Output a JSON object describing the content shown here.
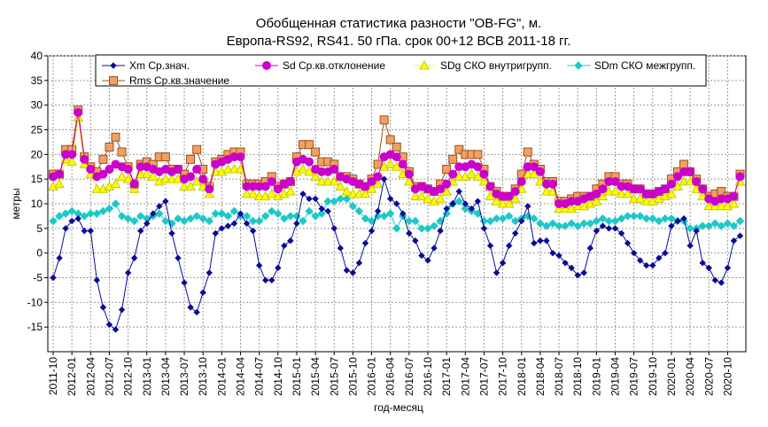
{
  "chart_data": {
    "type": "line",
    "title": "Обобщенная статистика разности \"OB-FG\", м.",
    "subtitle": "Европа-RS92, RS41. 50 гПа. срок 00+12 ВСВ 2011-18 гг.",
    "x_label": "год-месяц",
    "y_label": "метры",
    "ylim": [
      -20,
      40
    ],
    "yticks": [
      -15,
      -10,
      -5,
      0,
      5,
      10,
      15,
      20,
      25,
      30,
      35,
      40
    ],
    "grid": true,
    "legend": "top",
    "categories": [
      "2011-10",
      null,
      null,
      "2012-01",
      null,
      null,
      "2012-04",
      null,
      null,
      "2012-07",
      null,
      null,
      "2012-10",
      null,
      null,
      "2013-01",
      null,
      null,
      "2013-04",
      null,
      null,
      "2013-07",
      null,
      null,
      "2013-10",
      null,
      null,
      "2014-01",
      null,
      null,
      "2014-04",
      null,
      null,
      "2014-07",
      null,
      null,
      "2014-10",
      null,
      null,
      "2015-01",
      null,
      null,
      "2015-04",
      null,
      null,
      "2015-07",
      null,
      null,
      "2015-10",
      null,
      null,
      "2016-01",
      null,
      null,
      "2016-04",
      null,
      null,
      "2016-07",
      null,
      null,
      "2016-10",
      null,
      null,
      "2017-01",
      null,
      null,
      "2017-04",
      null,
      null,
      "2017-07",
      null,
      null,
      "2017-10",
      null,
      null,
      "2018-01",
      null,
      null,
      "2018-04",
      null,
      null,
      "2018-07",
      null,
      null,
      "2018-10",
      null,
      null,
      "2019-01",
      null,
      null,
      "2019-04",
      null,
      null,
      "2019-07",
      null,
      null,
      "2019-10",
      null,
      null,
      "2020-01",
      null,
      null,
      "2020-04",
      null,
      null,
      "2020-07",
      null,
      null,
      "2020-10",
      null,
      null
    ],
    "series": [
      {
        "name": "Xm Ср.знач.",
        "color": "#0a0a9a",
        "marker": "diamond",
        "values": [
          -5,
          -1,
          5,
          6.5,
          7,
          4.5,
          4.5,
          -5.5,
          -11,
          -14.5,
          -15.5,
          -11.5,
          -4,
          -1,
          4.5,
          6,
          8,
          9.5,
          10.5,
          4,
          -1,
          -6,
          -11,
          -12,
          -8,
          -4,
          4,
          5,
          5.5,
          6,
          8,
          6,
          4.5,
          -2.5,
          -5.5,
          -5.5,
          -3,
          1.5,
          2.5,
          6,
          12,
          11,
          11,
          9,
          8.5,
          5,
          1,
          -3.5,
          -4,
          -2,
          2,
          4.5,
          8.5,
          15,
          11,
          10,
          8,
          4,
          2.5,
          -0.5,
          -1.5,
          1,
          4.5,
          9,
          10,
          12.5,
          10,
          9,
          10.5,
          5,
          1.5,
          -4,
          -2,
          1.5,
          4,
          6.5,
          9.5,
          2,
          2.5,
          2.5,
          0,
          -0.5,
          -2,
          -3,
          -4.5,
          -4,
          1,
          4.5,
          5.5,
          5,
          5,
          4,
          2,
          0,
          -1.5,
          -2.5,
          -2.5,
          -1,
          0,
          5.5,
          6.5,
          7,
          1.5,
          4.5,
          -2,
          -3,
          -5.5,
          -6,
          -3,
          2.5,
          3.5
        ]
      },
      {
        "name": "Sd Ср.кв.отклонение",
        "color": "#cc00cc",
        "marker": "circle",
        "values": [
          15.5,
          16,
          20,
          20,
          28.5,
          19,
          17,
          15.5,
          16,
          17,
          18,
          17.5,
          17,
          14,
          17.5,
          17.5,
          17,
          16.5,
          17,
          16.5,
          17,
          15,
          15.5,
          17,
          15,
          13,
          18,
          18.5,
          19,
          19.5,
          19.5,
          13.5,
          13.5,
          13.5,
          13.5,
          14.5,
          13,
          14,
          14.5,
          18.5,
          19,
          18.5,
          17,
          16.5,
          16.5,
          17,
          15.5,
          15,
          14.5,
          14,
          13.5,
          14.5,
          15.5,
          19.5,
          20,
          19.5,
          18,
          16,
          13,
          13.5,
          13,
          12.5,
          13,
          14,
          16,
          17.5,
          17.5,
          18,
          17.5,
          16,
          13.5,
          12,
          11.5,
          11.5,
          12.5,
          14.5,
          17.5,
          17.5,
          16.5,
          14,
          14,
          10,
          10,
          10.5,
          10.5,
          11,
          11.5,
          12,
          13,
          14.5,
          14.5,
          13.5,
          13.5,
          13,
          13,
          12,
          12,
          12.5,
          13,
          14,
          15.5,
          16.5,
          16.5,
          14.5,
          13,
          11,
          10.5,
          11,
          11,
          11.5,
          15.5
        ]
      },
      {
        "name": "SDg СКО внутригрупп.",
        "color": "#ffff00",
        "marker": "triangle",
        "values": [
          13.5,
          14,
          19,
          18.5,
          27.5,
          18,
          16,
          13,
          13,
          13.5,
          14,
          15.5,
          15,
          13,
          16,
          16,
          15.5,
          14.5,
          15,
          15,
          15,
          13.5,
          13.5,
          14.5,
          13.5,
          12,
          16.5,
          16.5,
          17,
          17,
          17,
          12,
          12,
          11.5,
          11.5,
          12,
          11.5,
          12,
          12.5,
          16.5,
          17,
          16.5,
          15.5,
          14.5,
          14.5,
          14.5,
          13.5,
          12.5,
          12,
          12,
          12,
          13,
          14,
          17.5,
          18,
          17.5,
          16,
          14.5,
          11.5,
          11.5,
          11,
          10.5,
          11,
          12.5,
          14.5,
          15.5,
          15.5,
          16,
          15.5,
          14.5,
          11.5,
          10.5,
          10,
          10,
          11,
          13,
          16,
          16,
          14.5,
          12.5,
          12.5,
          9,
          9,
          9,
          9.5,
          9.5,
          10,
          10.5,
          11.5,
          12.5,
          12.5,
          12,
          12,
          11,
          11,
          10.5,
          10.5,
          11,
          11.5,
          12,
          13.5,
          14.5,
          14.5,
          13,
          11.5,
          9.5,
          9.5,
          9.5,
          9.5,
          10,
          14.5
        ]
      },
      {
        "name": "SDm СКО межгрупп.",
        "color": "#1cc8c8",
        "marker": "diamond",
        "values": [
          6.5,
          7.5,
          8,
          8.5,
          8,
          7.5,
          8,
          8,
          8.5,
          9,
          10,
          7.5,
          7,
          6.5,
          7.5,
          7,
          7.5,
          8,
          6.5,
          6,
          7,
          6.5,
          7,
          7.5,
          7,
          6.5,
          8,
          8,
          7.5,
          8.5,
          7.5,
          7.5,
          6.5,
          6.5,
          7.5,
          8.5,
          8,
          7,
          7.5,
          7.5,
          6.5,
          8.5,
          7.5,
          8,
          10.5,
          10.5,
          11,
          11,
          9.5,
          8.5,
          7,
          6.5,
          7.5,
          7.5,
          8,
          5,
          7.5,
          6.5,
          6.5,
          5,
          5,
          5.5,
          6.5,
          8,
          10,
          10.5,
          9,
          8.5,
          8,
          6.5,
          6.5,
          7,
          7,
          7.5,
          6.5,
          7,
          7.5,
          7,
          6,
          5.5,
          6,
          5.5,
          5.5,
          6,
          5.5,
          6,
          6,
          6.5,
          7,
          6.5,
          6.5,
          7,
          7.5,
          7.5,
          7.5,
          7,
          7,
          6.5,
          7,
          7,
          6.5,
          6.5,
          5,
          5,
          5.5,
          5.5,
          6,
          5.5,
          6,
          5.5,
          6.5
        ]
      },
      {
        "name": "Rms Ср.кв.значение",
        "color": "#f0a060",
        "marker": "square",
        "values": [
          16,
          16,
          21,
          21,
          29,
          19.5,
          17.5,
          16.5,
          19,
          21.5,
          23.5,
          20.5,
          17.5,
          14,
          18,
          18.5,
          18,
          19.5,
          19.5,
          17,
          17,
          16,
          19,
          21,
          17,
          13.5,
          18.5,
          19,
          20,
          20.5,
          20.5,
          14,
          14,
          14,
          14.5,
          15.5,
          13.5,
          14,
          14.5,
          19.5,
          22,
          22,
          20.5,
          18.5,
          18.5,
          18,
          15.5,
          15.5,
          15,
          14,
          13.5,
          15,
          18,
          27,
          23,
          21.5,
          19.5,
          16.5,
          13.5,
          13.5,
          13,
          12.5,
          14,
          17,
          19,
          21,
          20,
          20,
          20,
          17,
          13.5,
          12.5,
          11.5,
          11.5,
          13,
          16,
          20.5,
          18,
          17,
          14.5,
          14.5,
          10.5,
          10.5,
          11,
          11.5,
          11.5,
          11.5,
          13,
          14,
          15.5,
          15.5,
          14,
          14,
          13,
          13,
          12,
          12,
          12.5,
          13,
          15,
          16.5,
          18,
          16.5,
          15,
          13,
          11.5,
          12,
          12.5,
          11.5,
          11.5,
          16
        ]
      }
    ]
  }
}
